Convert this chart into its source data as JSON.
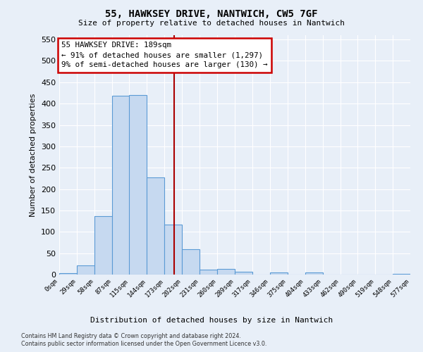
{
  "title1": "55, HAWKSEY DRIVE, NANTWICH, CW5 7GF",
  "title2": "Size of property relative to detached houses in Nantwich",
  "xlabel": "Distribution of detached houses by size in Nantwich",
  "ylabel": "Number of detached properties",
  "property_size": 189,
  "bin_width": 29,
  "bin_starts": [
    0,
    29,
    58,
    87,
    115,
    144,
    173,
    202,
    231,
    260,
    289,
    317,
    346,
    375,
    404,
    433,
    462,
    490,
    519,
    548
  ],
  "bin_labels": [
    "0sqm",
    "29sqm",
    "58sqm",
    "87sqm",
    "115sqm",
    "144sqm",
    "173sqm",
    "202sqm",
    "231sqm",
    "260sqm",
    "289sqm",
    "317sqm",
    "346sqm",
    "375sqm",
    "404sqm",
    "433sqm",
    "462sqm",
    "490sqm",
    "519sqm",
    "548sqm",
    "577sqm"
  ],
  "counts": [
    4,
    22,
    137,
    418,
    420,
    227,
    117,
    59,
    12,
    14,
    7,
    0,
    5,
    0,
    5,
    0,
    0,
    0,
    0,
    2
  ],
  "bar_color": "#c6d9f0",
  "bar_edge_color": "#5b9bd5",
  "marker_color": "#aa0000",
  "annotation_text": "55 HAWKSEY DRIVE: 189sqm\n← 91% of detached houses are smaller (1,297)\n9% of semi-detached houses are larger (130) →",
  "annotation_box_color": "#ffffff",
  "annotation_box_edge": "#cc0000",
  "ylim": [
    0,
    560
  ],
  "xlim": [
    0,
    577
  ],
  "footer1": "Contains HM Land Registry data © Crown copyright and database right 2024.",
  "footer2": "Contains public sector information licensed under the Open Government Licence v3.0.",
  "bg_color": "#e8eff8",
  "grid_color": "#ffffff",
  "yticks": [
    0,
    50,
    100,
    150,
    200,
    250,
    300,
    350,
    400,
    450,
    500,
    550
  ]
}
